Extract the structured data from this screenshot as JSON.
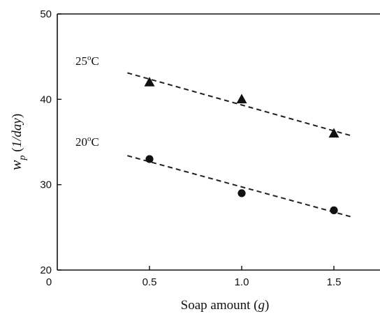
{
  "chart_data": {
    "type": "scatter",
    "title": "",
    "xlabel": "Soap amount",
    "xlabel_unit": "g",
    "ylabel_symbol": "w",
    "ylabel_subscript": "p",
    "ylabel_unit": "1/day",
    "xlim": [
      0,
      1.75
    ],
    "ylim": [
      20,
      50
    ],
    "x_ticks": [
      0.5,
      1.0,
      1.5
    ],
    "x_tick_labels": [
      "0.5",
      "1.0",
      "1.5"
    ],
    "x_origin_label": "0",
    "y_ticks": [
      20,
      30,
      40,
      50
    ],
    "y_tick_labels": [
      "20",
      "30",
      "40",
      "50"
    ],
    "grid": false,
    "series": [
      {
        "label_base": "25",
        "label_sup": "o",
        "label_unit": "C",
        "marker": "triangle",
        "x": [
          0.5,
          1.0,
          1.5
        ],
        "y": [
          42,
          40,
          36
        ],
        "fit_line": {
          "x": [
            0.38,
            1.6
          ],
          "y": [
            43.1,
            35.7
          ]
        }
      },
      {
        "label_base": "20",
        "label_sup": "o",
        "label_unit": "C",
        "marker": "circle",
        "x": [
          0.5,
          1.0,
          1.5
        ],
        "y": [
          33,
          29,
          27
        ],
        "fit_line": {
          "x": [
            0.38,
            1.6
          ],
          "y": [
            33.4,
            26.2
          ]
        }
      }
    ],
    "colors": {
      "marker": "#111111",
      "line": "#222222",
      "axis": "#111111"
    }
  }
}
